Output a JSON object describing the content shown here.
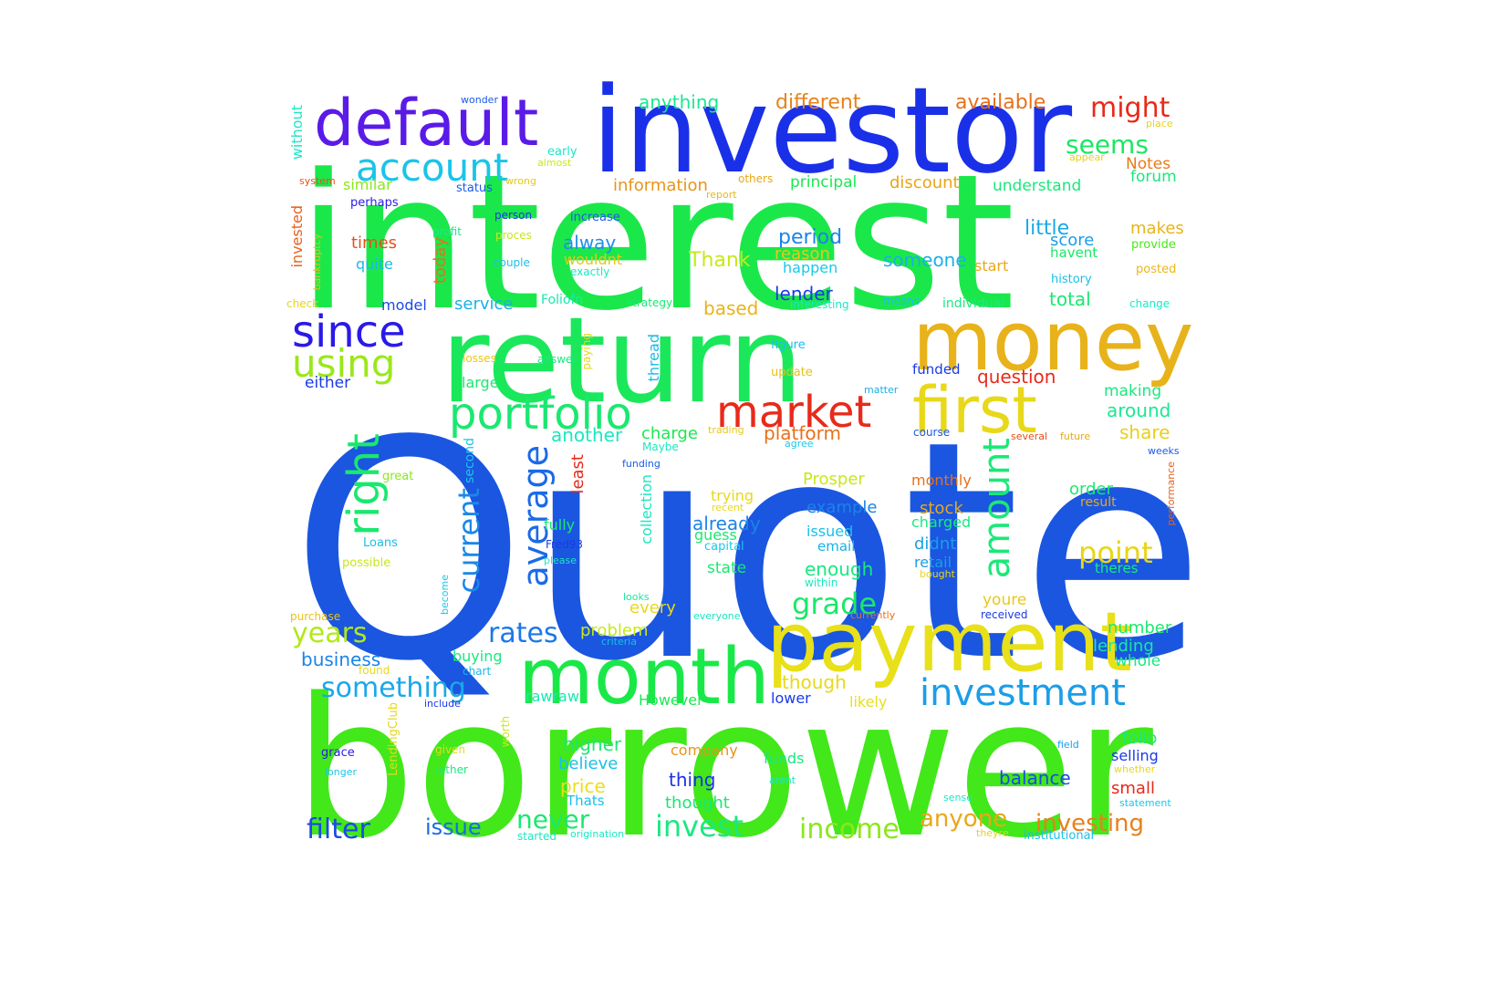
{
  "words": [
    {
      "text": "Quote",
      "color": "#1a56e0"
    },
    {
      "text": "interest",
      "color": "#1ae84a"
    },
    {
      "text": "borrower",
      "color": "#42e81a"
    },
    {
      "text": "investor",
      "color": "#1a30e8"
    },
    {
      "text": "return",
      "color": "#1ae85a"
    },
    {
      "text": "money",
      "color": "#e8b21a"
    },
    {
      "text": "payment",
      "color": "#e8e01a"
    },
    {
      "text": "month",
      "color": "#1ae848"
    },
    {
      "text": "default",
      "color": "#5a1ae8"
    },
    {
      "text": "first",
      "color": "#e8d81a"
    },
    {
      "text": "market",
      "color": "#e82a1a"
    },
    {
      "text": "portfolio",
      "color": "#1ae870"
    },
    {
      "text": "account",
      "color": "#1ac4e8"
    },
    {
      "text": "since",
      "color": "#2a1ae8"
    },
    {
      "text": "investment",
      "color": "#1a9ee8"
    },
    {
      "text": "using",
      "color": "#9ae81a"
    },
    {
      "text": "right",
      "color": "#1ae86e"
    },
    {
      "text": "amount",
      "color": "#1ae878"
    },
    {
      "text": "average",
      "color": "#1a6ae8"
    },
    {
      "text": "current",
      "color": "#1a88e8"
    },
    {
      "text": "grade",
      "color": "#1ae868"
    },
    {
      "text": "point",
      "color": "#e8d41a"
    },
    {
      "text": "rates",
      "color": "#1a78e8"
    },
    {
      "text": "years",
      "color": "#b2e81a"
    },
    {
      "text": "something",
      "color": "#1aa8e8"
    },
    {
      "text": "invest",
      "color": "#1ae880"
    },
    {
      "text": "income",
      "color": "#8ae81a"
    },
    {
      "text": "filter",
      "color": "#1a4ae8"
    },
    {
      "text": "never",
      "color": "#1ae870"
    },
    {
      "text": "issue",
      "color": "#1a6ae8"
    },
    {
      "text": "anyone",
      "color": "#e8a81a"
    },
    {
      "text": "investing",
      "color": "#e8801a"
    },
    {
      "text": "might",
      "color": "#e82a1a"
    },
    {
      "text": "seems",
      "color": "#1ae860"
    },
    {
      "text": "available",
      "color": "#e8701a"
    },
    {
      "text": "different",
      "color": "#e8821a"
    },
    {
      "text": "anything",
      "color": "#1ae890"
    },
    {
      "text": "information",
      "color": "#e8941a"
    },
    {
      "text": "principal",
      "color": "#1ae850"
    },
    {
      "text": "discount",
      "color": "#e8a41a"
    },
    {
      "text": "understand",
      "color": "#1ae87a"
    },
    {
      "text": "Notes",
      "color": "#e87a1a"
    },
    {
      "text": "forum",
      "color": "#1ae880"
    },
    {
      "text": "similar",
      "color": "#8ae81a"
    },
    {
      "text": "status",
      "color": "#1a5ae8"
    },
    {
      "text": "little",
      "color": "#1aa8e8"
    },
    {
      "text": "score",
      "color": "#1a9ee8"
    },
    {
      "text": "makes",
      "color": "#e8b41a"
    },
    {
      "text": "havent",
      "color": "#1ae868"
    },
    {
      "text": "provide",
      "color": "#4ae81a"
    },
    {
      "text": "period",
      "color": "#1a84e8"
    },
    {
      "text": "reason",
      "color": "#e8c81a"
    },
    {
      "text": "happen",
      "color": "#1ac8e8"
    },
    {
      "text": "someone",
      "color": "#1ab0e8"
    },
    {
      "text": "start",
      "color": "#e8a81a"
    },
    {
      "text": "history",
      "color": "#1ac0e8"
    },
    {
      "text": "posted",
      "color": "#e8b81a"
    },
    {
      "text": "Thank",
      "color": "#c8e81a"
    },
    {
      "text": "alway",
      "color": "#1a90e8"
    },
    {
      "text": "times",
      "color": "#e8501a"
    },
    {
      "text": "quite",
      "color": "#1ab8e8"
    },
    {
      "text": "perhaps",
      "color": "#2a1ae8"
    },
    {
      "text": "today",
      "color": "#e8701a"
    },
    {
      "text": "invested",
      "color": "#e8601a"
    },
    {
      "text": "without",
      "color": "#1ae8c8"
    },
    {
      "text": "system",
      "color": "#e8501a"
    },
    {
      "text": "bankruptcy",
      "color": "#e8c01a"
    },
    {
      "text": "check",
      "color": "#e8d41a"
    },
    {
      "text": "model",
      "color": "#1a4ae8"
    },
    {
      "text": "service",
      "color": "#1ab0e8"
    },
    {
      "text": "Foliofn",
      "color": "#1ae8a8"
    },
    {
      "text": "strategy",
      "color": "#1ae870"
    },
    {
      "text": "interesting",
      "color": "#1ae8c0"
    },
    {
      "text": "based",
      "color": "#e8b41a"
    },
    {
      "text": "lender",
      "color": "#1a3ae8"
    },
    {
      "text": "means",
      "color": "#1ac0e8"
    },
    {
      "text": "individual",
      "color": "#1ae880"
    },
    {
      "text": "total",
      "color": "#1ae870"
    },
    {
      "text": "change",
      "color": "#1ae8c8"
    },
    {
      "text": "increase",
      "color": "#1a5ae8"
    },
    {
      "text": "person",
      "color": "#1a3ae8"
    },
    {
      "text": "profit",
      "color": "#1ae890"
    },
    {
      "text": "proces",
      "color": "#c8e81a"
    },
    {
      "text": "couple",
      "color": "#1ac0e8"
    },
    {
      "text": "wouldnt",
      "color": "#e8c41a"
    },
    {
      "text": "exactly",
      "color": "#1ae8c0"
    },
    {
      "text": "wonder",
      "color": "#1a5ae8"
    },
    {
      "text": "early",
      "color": "#1ae8c8"
    },
    {
      "text": "almost",
      "color": "#c8e81a"
    },
    {
      "text": "wrong",
      "color": "#e8c81a"
    },
    {
      "text": "report",
      "color": "#e8b81a"
    },
    {
      "text": "others",
      "color": "#e8a81a"
    },
    {
      "text": "appear",
      "color": "#e8d01a"
    },
    {
      "text": "place",
      "color": "#e8d41a"
    },
    {
      "text": "question",
      "color": "#e82a1a"
    },
    {
      "text": "funded",
      "color": "#1a3ae8"
    },
    {
      "text": "figure",
      "color": "#1ac0e8"
    },
    {
      "text": "update",
      "color": "#e8c01a"
    },
    {
      "text": "matter",
      "color": "#1ab0e8"
    },
    {
      "text": "making",
      "color": "#1ae880"
    },
    {
      "text": "around",
      "color": "#1ae890"
    },
    {
      "text": "share",
      "color": "#e8d01a"
    },
    {
      "text": "large",
      "color": "#1ae870"
    },
    {
      "text": "either",
      "color": "#1a3ae8"
    },
    {
      "text": "answer",
      "color": "#1ae880"
    },
    {
      "text": "losses",
      "color": "#e8c81a"
    },
    {
      "text": "paying",
      "color": "#e8d81a"
    },
    {
      "text": "thread",
      "color": "#1ab8e8"
    },
    {
      "text": "another",
      "color": "#1ae8c0"
    },
    {
      "text": "charge",
      "color": "#1ae850"
    },
    {
      "text": "platform",
      "color": "#e8701a"
    },
    {
      "text": "trading",
      "color": "#e8c81a"
    },
    {
      "text": "agree",
      "color": "#1ac8e8"
    },
    {
      "text": "course",
      "color": "#1a5ae8"
    },
    {
      "text": "several",
      "color": "#e8501a"
    },
    {
      "text": "future",
      "color": "#e8a81a"
    },
    {
      "text": "weeks",
      "color": "#1a5ae8"
    },
    {
      "text": "performance",
      "color": "#e8601a"
    },
    {
      "text": "Maybe",
      "color": "#1ae8c0"
    },
    {
      "text": "funding",
      "color": "#1a5ae8"
    },
    {
      "text": "least",
      "color": "#e82a1a"
    },
    {
      "text": "second",
      "color": "#1ac8e8"
    },
    {
      "text": "great",
      "color": "#8ae81a"
    },
    {
      "text": "Prosper",
      "color": "#c8e81a"
    },
    {
      "text": "monthly",
      "color": "#e8701a"
    },
    {
      "text": "order",
      "color": "#1ae870"
    },
    {
      "text": "result",
      "color": "#e8a81a"
    },
    {
      "text": "trying",
      "color": "#e8d81a"
    },
    {
      "text": "recent",
      "color": "#e8d81a"
    },
    {
      "text": "already",
      "color": "#1a84e8"
    },
    {
      "text": "guess",
      "color": "#1ae870"
    },
    {
      "text": "capital",
      "color": "#1ac8e8"
    },
    {
      "text": "example",
      "color": "#1a84e8"
    },
    {
      "text": "stock",
      "color": "#e8a81a"
    },
    {
      "text": "charged",
      "color": "#1ae880"
    },
    {
      "text": "issued",
      "color": "#1ac0e8"
    },
    {
      "text": "email",
      "color": "#1ab0e8"
    },
    {
      "text": "didnt",
      "color": "#1a9ee8"
    },
    {
      "text": "collection",
      "color": "#1ae8c0"
    },
    {
      "text": "fully",
      "color": "#1ae870"
    },
    {
      "text": "Fred93",
      "color": "#1a3ae8"
    },
    {
      "text": "please",
      "color": "#1ae8c0"
    },
    {
      "text": "Loans",
      "color": "#1ac0e8"
    },
    {
      "text": "possible",
      "color": "#c8e81a"
    },
    {
      "text": "state",
      "color": "#1ae870"
    },
    {
      "text": "enough",
      "color": "#1ae880"
    },
    {
      "text": "within",
      "color": "#1ae8c0"
    },
    {
      "text": "retail",
      "color": "#1a9ee8"
    },
    {
      "text": "bought",
      "color": "#e8d41a"
    },
    {
      "text": "theres",
      "color": "#1ae880"
    },
    {
      "text": "become",
      "color": "#1ac8e8"
    },
    {
      "text": "looks",
      "color": "#1ae8a0"
    },
    {
      "text": "every",
      "color": "#e8d81a"
    },
    {
      "text": "everyone",
      "color": "#1ae8c0"
    },
    {
      "text": "currently",
      "color": "#e8701a"
    },
    {
      "text": "received",
      "color": "#1a3ae8"
    },
    {
      "text": "youre",
      "color": "#e8c81a"
    },
    {
      "text": "purchase",
      "color": "#e8c01a"
    },
    {
      "text": "problem",
      "color": "#c8e81a"
    },
    {
      "text": "criteria",
      "color": "#1ac0e8"
    },
    {
      "text": "number",
      "color": "#1ae870"
    },
    {
      "text": "lending",
      "color": "#1ae8a0"
    },
    {
      "text": "whole",
      "color": "#1ae880"
    },
    {
      "text": "business",
      "color": "#1a84e8"
    },
    {
      "text": "found",
      "color": "#e8d81a"
    },
    {
      "text": "buying",
      "color": "#1ae880"
    },
    {
      "text": "chart",
      "color": "#1ab8e8"
    },
    {
      "text": "though",
      "color": "#e8d81a"
    },
    {
      "text": "likely",
      "color": "#e8e01a"
    },
    {
      "text": "include",
      "color": "#1a3ae8"
    },
    {
      "text": "rawraw",
      "color": "#1ae8b0"
    },
    {
      "text": "However",
      "color": "#1ae850"
    },
    {
      "text": "lower",
      "color": "#1a3ae8"
    },
    {
      "text": "LendingClub",
      "color": "#e8d81a"
    },
    {
      "text": "worth",
      "color": "#c8e81a"
    },
    {
      "text": "higher",
      "color": "#1ae870"
    },
    {
      "text": "company",
      "color": "#e8941a"
    },
    {
      "text": "funds",
      "color": "#1ae880"
    },
    {
      "text": "folio",
      "color": "#1ae880"
    },
    {
      "text": "field",
      "color": "#1a9ee8"
    },
    {
      "text": "selling",
      "color": "#1a3ae8"
    },
    {
      "text": "whether",
      "color": "#e8d81a"
    },
    {
      "text": "believe",
      "color": "#1ac0e8"
    },
    {
      "text": "grace",
      "color": "#2a1ae8"
    },
    {
      "text": "given",
      "color": "#e8d81a"
    },
    {
      "text": "thing",
      "color": "#1a30e8"
    },
    {
      "text": "arent",
      "color": "#1ae8c0"
    },
    {
      "text": "balance",
      "color": "#1a4ae8"
    },
    {
      "text": "small",
      "color": "#e8281a"
    },
    {
      "text": "longer",
      "color": "#1ac8e8"
    },
    {
      "text": "rather",
      "color": "#1ae880"
    },
    {
      "text": "price",
      "color": "#e8e01a"
    },
    {
      "text": "Thats",
      "color": "#1ac0e8"
    },
    {
      "text": "thought",
      "color": "#1ae870"
    },
    {
      "text": "sense",
      "color": "#1ae8c0"
    },
    {
      "text": "statement",
      "color": "#1ac8e8"
    },
    {
      "text": "started",
      "color": "#1ae8c0"
    },
    {
      "text": "origination",
      "color": "#1ae8c0"
    },
    {
      "text": "theyre",
      "color": "#e8d01a"
    },
    {
      "text": "institutional",
      "color": "#1ac0e8"
    }
  ]
}
